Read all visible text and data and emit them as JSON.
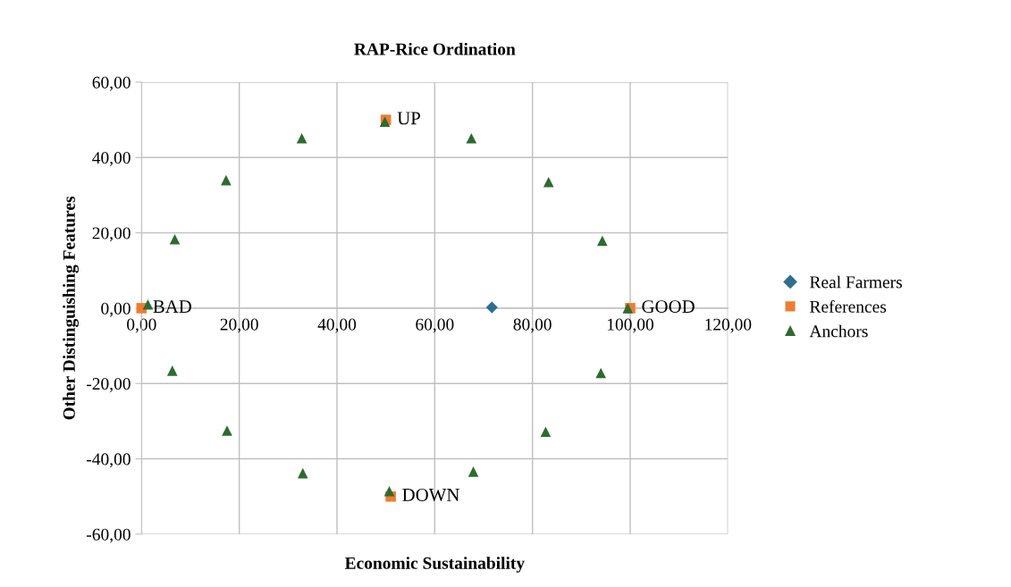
{
  "chart_data": {
    "type": "scatter",
    "title": "RAP-Rice Ordination",
    "xlabel": "Economic Sustainability",
    "ylabel": "Other Distinguishing Features",
    "xlim": [
      0,
      120
    ],
    "ylim": [
      -60,
      60
    ],
    "xticks": [
      {
        "value": 0,
        "label": "0,00"
      },
      {
        "value": 20,
        "label": "20,00"
      },
      {
        "value": 40,
        "label": "40,00"
      },
      {
        "value": 60,
        "label": "60,00"
      },
      {
        "value": 80,
        "label": "80,00"
      },
      {
        "value": 100,
        "label": "100,00"
      },
      {
        "value": 120,
        "label": "120,00"
      }
    ],
    "yticks": [
      {
        "value": -60,
        "label": "-60,00"
      },
      {
        "value": -40,
        "label": "-40,00"
      },
      {
        "value": -20,
        "label": "-20,00"
      },
      {
        "value": 0,
        "label": "0,00"
      },
      {
        "value": 20,
        "label": "20,00"
      },
      {
        "value": 40,
        "label": "40,00"
      },
      {
        "value": 60,
        "label": "60,00"
      }
    ],
    "grid": true,
    "legend": "right",
    "series": [
      {
        "name": "Real Farmers",
        "color": "#2e6e8e",
        "marker": "diamond",
        "x": [
          71.7
        ],
        "values": [
          0.2
        ]
      },
      {
        "name": "References",
        "color": "#ed7d31",
        "marker": "square",
        "x": [
          0,
          100,
          50,
          51
        ],
        "values": [
          0,
          0,
          50,
          -50
        ]
      },
      {
        "name": "Anchors",
        "color": "#2e6b30",
        "marker": "triangle",
        "x": [
          1.3,
          6.8,
          17.3,
          32.8,
          49.8,
          67.5,
          83.3,
          94.3,
          99.5,
          94.0,
          82.7,
          67.9,
          50.7,
          33.0,
          17.5,
          6.3
        ],
        "values": [
          1.0,
          18.3,
          34.0,
          45.1,
          49.5,
          45.1,
          33.5,
          17.9,
          0,
          -17.2,
          -32.8,
          -43.4,
          -48.6,
          -43.8,
          -32.5,
          -16.6
        ]
      }
    ],
    "annotations": [
      {
        "text": "BAD",
        "x": 0,
        "y": 0
      },
      {
        "text": "UP",
        "x": 50,
        "y": 50
      },
      {
        "text": "GOOD",
        "x": 100,
        "y": 0
      },
      {
        "text": "DOWN",
        "x": 51,
        "y": -50
      }
    ]
  }
}
